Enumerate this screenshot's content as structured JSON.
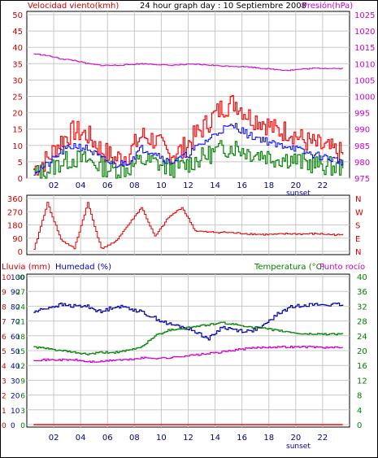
{
  "header": {
    "title": "24 hour graph day : 10 Septiembre 2008",
    "left_label": "Velocidad viento(kmh)",
    "right_label": "Presión(hPa)"
  },
  "x_axis": {
    "ticks": [
      "02",
      "04",
      "06",
      "08",
      "10",
      "12",
      "14",
      "16",
      "18",
      "20",
      "22"
    ],
    "sunset_label": "sunset"
  },
  "colors": {
    "wind_avg": "#0000ff",
    "gust": "#ff0000",
    "wind_low": "#008000",
    "pressure": "#cc00cc",
    "direction": "#e00000",
    "humidity": "#0000aa",
    "temperature": "#008000",
    "dewpoint": "#cc00cc",
    "rain": "#ff0000",
    "grid": "#c8c8c8",
    "frame": "#000000"
  },
  "panel_wind": {
    "left_ticks": [
      "0",
      "5",
      "10",
      "15",
      "20",
      "25",
      "30",
      "35",
      "40",
      "45",
      "50"
    ],
    "right_ticks": [
      "975",
      "980",
      "985",
      "990",
      "995",
      "1000",
      "1005",
      "1010",
      "1015",
      "1020",
      "1025"
    ],
    "ylim_wind": [
      0,
      50
    ],
    "ylim_pressure": [
      975,
      1025
    ]
  },
  "panel_dir": {
    "left_ticks": [
      "0",
      "90",
      "180",
      "270",
      "360"
    ],
    "right_ticks": [
      "N",
      "E",
      "S",
      "W",
      "N"
    ],
    "ylim": [
      0,
      360
    ]
  },
  "panel_temp": {
    "left_label": "Lluvia (mm)",
    "left_label2": "Humedad (%)",
    "right_label": "Temperatura (°C)",
    "right_label2": "Punto rocío",
    "rain_ticks": [
      "0",
      "1",
      "2",
      "3",
      "4",
      "5",
      "6",
      "7",
      "8",
      "9",
      "10"
    ],
    "humidity_ticks": [
      "0",
      "10",
      "20",
      "30",
      "40",
      "50",
      "60",
      "70",
      "80",
      "90",
      "100"
    ],
    "temp_ticks_left": [
      "0",
      "3",
      "6",
      "9",
      "12",
      "15",
      "18",
      "21",
      "24",
      "27",
      "30"
    ],
    "temp_ticks_right": [
      "0",
      "4",
      "8",
      "12",
      "16",
      "20",
      "24",
      "28",
      "32",
      "36",
      "40"
    ],
    "ylim_humidity": [
      0,
      100
    ],
    "ylim_temp": [
      0,
      40
    ]
  },
  "chart_data": [
    {
      "type": "line",
      "title": "24 hour graph day : 10 Septiembre 2008",
      "x": [
        0,
        1,
        2,
        3,
        4,
        5,
        6,
        7,
        8,
        9,
        10,
        11,
        12,
        13,
        14,
        15,
        16,
        17,
        18,
        19,
        20,
        21,
        22,
        23
      ],
      "xlim": [
        0,
        24
      ],
      "series": [
        {
          "name": "Velocidad viento(kmh)",
          "axis": "left",
          "values": [
            2,
            4,
            8,
            10,
            9,
            6,
            4,
            5,
            9,
            8,
            5,
            6,
            9,
            12,
            15,
            16,
            13,
            12,
            10,
            10,
            8,
            7,
            6,
            5
          ]
        },
        {
          "name": "Presión(hPa)",
          "axis": "right",
          "values": [
            1013,
            1012.5,
            1011.5,
            1011,
            1010,
            1009.5,
            1009.5,
            1009.7,
            1010,
            1009.8,
            1009.5,
            1009.7,
            1009.8,
            1009.6,
            1009.3,
            1009.2,
            1009,
            1008.6,
            1008.2,
            1008,
            1008.4,
            1008.6,
            1008.6,
            1008.5
          ]
        }
      ],
      "ylabel": "Velocidad viento(kmh)",
      "ylim": [
        0,
        50
      ],
      "y2label": "Presión(hPa)",
      "y2lim": [
        975,
        1025
      ]
    },
    {
      "type": "line",
      "x": [
        0,
        1,
        2,
        3,
        4,
        5,
        6,
        7,
        8,
        9,
        10,
        11,
        12,
        13,
        14,
        15,
        16,
        17,
        18,
        19,
        20,
        21,
        22,
        23
      ],
      "xlim": [
        0,
        24
      ],
      "series": [
        {
          "name": "direction",
          "values": [
            10,
            330,
            80,
            20,
            330,
            20,
            60,
            180,
            300,
            100,
            230,
            300,
            140,
            130,
            130,
            125,
            120,
            115,
            115,
            120,
            118,
            120,
            115,
            110
          ]
        }
      ],
      "ylim": [
        0,
        360
      ]
    },
    {
      "type": "line",
      "x": [
        0,
        1,
        2,
        3,
        4,
        5,
        6,
        7,
        8,
        9,
        10,
        11,
        12,
        13,
        14,
        15,
        16,
        17,
        18,
        19,
        20,
        21,
        22,
        23
      ],
      "xlim": [
        0,
        24
      ],
      "series": [
        {
          "name": "Humedad (%)",
          "axis": "humidity",
          "values": [
            76,
            79,
            81,
            80,
            80,
            76,
            80,
            79,
            76,
            72,
            68,
            66,
            63,
            58,
            66,
            64,
            63,
            66,
            74,
            79,
            81,
            81,
            81,
            81
          ]
        },
        {
          "name": "Temperatura (°C)",
          "axis": "temp",
          "values": [
            21,
            20.5,
            20,
            19.5,
            19,
            19.5,
            19.5,
            20,
            21,
            24,
            25.5,
            26,
            26.5,
            27,
            27.5,
            27,
            26.5,
            26,
            25.5,
            25,
            24.5,
            24.5,
            24.5,
            24.5
          ]
        },
        {
          "name": "Punto rocío",
          "axis": "temp",
          "values": [
            17.5,
            17.5,
            17.5,
            17.5,
            17,
            17,
            17.5,
            17.5,
            18,
            18,
            18,
            18.5,
            18.8,
            19.2,
            19.6,
            20.2,
            20.6,
            20.9,
            21,
            21,
            21,
            21,
            20.8,
            20.8
          ]
        },
        {
          "name": "Lluvia (mm)",
          "axis": "rain",
          "values": [
            0,
            0,
            0,
            0,
            0,
            0,
            0,
            0,
            0,
            0,
            0,
            0,
            0,
            0,
            0,
            0,
            0,
            0,
            0,
            0,
            0,
            0,
            0,
            0
          ]
        }
      ],
      "ylabel": "Humedad (%)",
      "ylim": [
        0,
        100
      ],
      "y2label": "Temperatura (°C)",
      "y2lim": [
        0,
        40
      ]
    }
  ]
}
